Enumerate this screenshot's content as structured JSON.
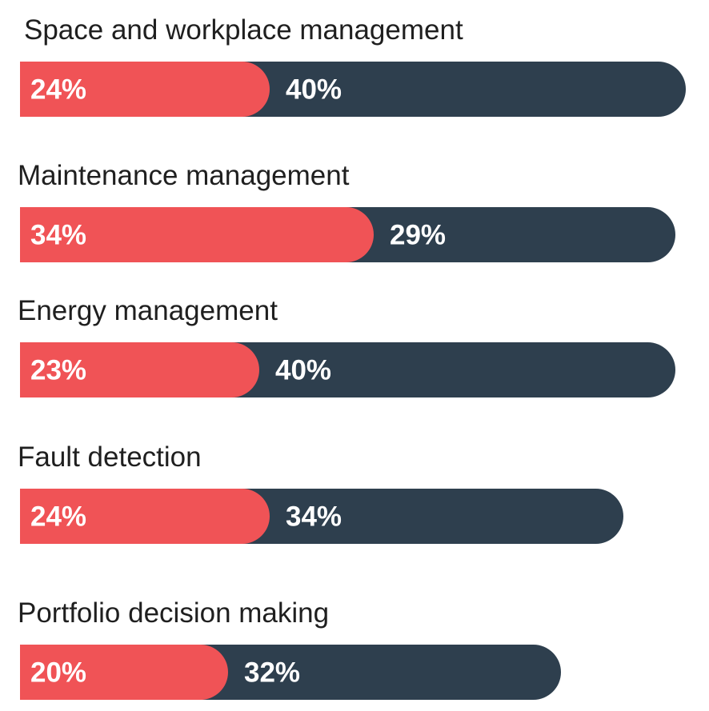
{
  "chart_data": {
    "type": "bar",
    "orientation": "horizontal",
    "stacked": true,
    "categories": [
      "Space and workplace management",
      "Maintenance management",
      "Energy management",
      "Fault detection",
      "Portfolio decision making"
    ],
    "series": [
      {
        "values": [
          24,
          34,
          23,
          24,
          20
        ],
        "labels": [
          "24%",
          "34%",
          "23%",
          "24%",
          "20%"
        ]
      },
      {
        "values": [
          40,
          29,
          40,
          34,
          32
        ],
        "labels": [
          "40%",
          "29%",
          "40%",
          "34%",
          "32%"
        ]
      }
    ],
    "colors": [
      "#f05356",
      "#2e3f4e"
    ],
    "xlim": [
      0,
      64
    ],
    "grid": false,
    "legend": "none"
  }
}
